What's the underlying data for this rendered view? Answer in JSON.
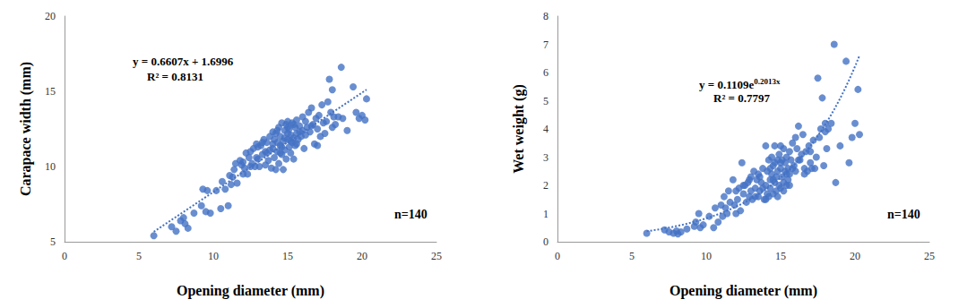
{
  "chart_data": [
    {
      "type": "scatter",
      "x_label": "Opening diameter (mm)",
      "y_label": "Carapace width (mm)",
      "color": "#4472c4",
      "marker": "circle",
      "xlim": [
        0,
        25
      ],
      "xticks": [
        0,
        5,
        10,
        15,
        20,
        25
      ],
      "ylim": [
        5,
        20
      ],
      "yticks": [
        5,
        10,
        15,
        20
      ],
      "grid": false,
      "equation": [
        "y = 0.6607x + 1.6996"
      ],
      "r2_label": "R² = 0.8131",
      "n_label": "n=140",
      "trendline": {
        "type": "linear",
        "a": 0.6607,
        "b": 1.6996,
        "line_style": "dotted"
      },
      "x": [
        6.0,
        7.2,
        7.5,
        7.8,
        8.0,
        8.1,
        8.3,
        8.7,
        9.2,
        9.3,
        9.5,
        9.6,
        9.8,
        10.2,
        10.5,
        10.6,
        10.8,
        11.0,
        11.1,
        11.2,
        11.3,
        11.5,
        11.6,
        11.8,
        12.0,
        12.1,
        12.2,
        12.3,
        12.4,
        12.5,
        12.6,
        12.7,
        12.8,
        12.9,
        13.0,
        13.0,
        13.1,
        13.2,
        13.3,
        13.4,
        13.5,
        13.5,
        13.6,
        13.7,
        13.8,
        13.9,
        14.0,
        14.0,
        14.1,
        14.1,
        14.2,
        14.2,
        14.3,
        14.3,
        14.4,
        14.4,
        14.5,
        14.5,
        14.6,
        14.6,
        14.7,
        14.7,
        14.8,
        14.8,
        14.9,
        14.9,
        15.0,
        15.0,
        15.0,
        15.1,
        15.1,
        15.2,
        15.2,
        15.3,
        15.3,
        15.4,
        15.4,
        15.5,
        15.5,
        15.6,
        15.6,
        15.7,
        15.8,
        15.9,
        16.0,
        16.0,
        16.1,
        16.2,
        16.3,
        16.4,
        16.5,
        16.6,
        16.7,
        16.8,
        16.9,
        17.0,
        17.0,
        17.1,
        17.2,
        17.3,
        17.4,
        17.5,
        17.6,
        17.7,
        17.8,
        17.9,
        18.0,
        18.0,
        18.1,
        18.2,
        18.4,
        18.6,
        18.7,
        19.0,
        19.4,
        19.6,
        19.8,
        20.0,
        20.2,
        20.3,
        11.4,
        11.9,
        12.0,
        12.5,
        12.9,
        13.3,
        13.6,
        14.0,
        14.3,
        14.5,
        14.8,
        15.0,
        15.2,
        15.4,
        15.6,
        15.8,
        16.2,
        16.6,
        13.8,
        14.6
      ],
      "values": [
        5.4,
        6.0,
        5.7,
        6.4,
        6.6,
        6.2,
        5.9,
        6.9,
        7.4,
        8.5,
        7.0,
        8.4,
        6.9,
        8.4,
        7.2,
        9.0,
        8.5,
        7.4,
        9.4,
        8.8,
        9.3,
        10.2,
        8.9,
        10.4,
        9.5,
        9.9,
        10.9,
        9.5,
        10.6,
        11.0,
        10.2,
        11.2,
        10.0,
        11.5,
        10.5,
        11.3,
        10.0,
        11.4,
        10.8,
        11.8,
        10.1,
        11.0,
        11.6,
        10.4,
        12.0,
        9.9,
        11.2,
        12.3,
        10.6,
        11.8,
        9.8,
        12.2,
        11.0,
        11.6,
        10.2,
        12.6,
        11.4,
        12.0,
        10.8,
        12.9,
        11.7,
        9.8,
        12.4,
        11.1,
        12.8,
        10.5,
        11.8,
        12.2,
        13.0,
        11.3,
        12.5,
        10.9,
        12.1,
        11.6,
        12.9,
        11.9,
        10.5,
        12.6,
        11.4,
        13.1,
        12.2,
        11.8,
        12.7,
        12.0,
        13.3,
        12.4,
        11.2,
        13.0,
        12.6,
        13.6,
        12.3,
        13.9,
        12.8,
        11.5,
        13.2,
        11.4,
        12.5,
        13.4,
        12.0,
        14.1,
        12.9,
        12.2,
        13.0,
        14.3,
        15.8,
        13.6,
        12.6,
        15.1,
        13.3,
        12.8,
        13.3,
        16.6,
        13.2,
        12.4,
        15.3,
        13.6,
        13.2,
        13.4,
        13.1,
        14.5,
        9.8,
        10.1,
        10.3,
        10.0,
        10.6,
        11.6,
        10.9,
        11.5,
        12.4,
        10.9,
        11.9,
        12.6,
        11.7,
        12.8,
        11.5,
        12.3,
        12.1,
        12.7,
        11.1,
        11.3
      ]
    },
    {
      "type": "scatter",
      "x_label": "Opening diameter (mm)",
      "y_label": "Wet weight (g)",
      "color": "#4472c4",
      "marker": "circle",
      "xlim": [
        0,
        25
      ],
      "xticks": [
        0,
        5,
        10,
        15,
        20,
        25
      ],
      "ylim": [
        0,
        8
      ],
      "yticks": [
        0,
        1,
        2,
        3,
        4,
        5,
        6,
        7,
        8
      ],
      "grid": false,
      "equation": [
        "y = 0.1109e",
        "0.2013x"
      ],
      "r2_label": "R² = 0.7797",
      "n_label": "n=140",
      "trendline": {
        "type": "exponential",
        "a": 0.1109,
        "b": 0.2013,
        "line_style": "dotted"
      },
      "x": [
        6.0,
        7.2,
        7.5,
        7.8,
        8.0,
        8.1,
        8.3,
        8.7,
        9.2,
        9.3,
        9.5,
        9.6,
        9.8,
        10.2,
        10.5,
        10.6,
        10.8,
        11.0,
        11.1,
        11.2,
        11.3,
        11.5,
        11.6,
        11.8,
        12.0,
        12.1,
        12.2,
        12.3,
        12.4,
        12.5,
        12.6,
        12.7,
        12.8,
        12.9,
        13.0,
        13.0,
        13.1,
        13.2,
        13.3,
        13.4,
        13.5,
        13.5,
        13.6,
        13.7,
        13.8,
        13.9,
        14.0,
        14.0,
        14.1,
        14.1,
        14.2,
        14.2,
        14.3,
        14.3,
        14.4,
        14.4,
        14.5,
        14.5,
        14.6,
        14.6,
        14.7,
        14.7,
        14.8,
        14.8,
        14.9,
        14.9,
        15.0,
        15.0,
        15.0,
        15.1,
        15.1,
        15.2,
        15.2,
        15.3,
        15.3,
        15.4,
        15.4,
        15.5,
        15.5,
        15.6,
        15.6,
        15.7,
        15.8,
        15.9,
        16.0,
        16.0,
        16.1,
        16.2,
        16.3,
        16.4,
        16.5,
        16.6,
        16.7,
        16.8,
        16.9,
        17.0,
        17.0,
        17.1,
        17.2,
        17.3,
        17.4,
        17.5,
        17.6,
        17.7,
        17.8,
        17.9,
        18.0,
        18.0,
        18.1,
        18.2,
        18.4,
        18.6,
        18.7,
        19.0,
        19.4,
        19.6,
        19.8,
        20.0,
        20.2,
        20.3,
        11.4,
        11.9,
        12.0,
        12.5,
        12.9,
        13.3,
        13.6,
        14.0,
        14.3,
        14.5,
        14.8,
        15.0,
        15.2,
        15.4,
        15.6,
        15.8,
        16.2,
        16.6,
        13.8,
        14.6
      ],
      "values": [
        0.3,
        0.42,
        0.35,
        0.3,
        0.38,
        0.28,
        0.35,
        0.45,
        0.55,
        0.7,
        1.0,
        0.5,
        0.6,
        0.9,
        0.5,
        1.2,
        0.7,
        1.3,
        0.9,
        1.6,
        1.2,
        1.8,
        1.4,
        2.2,
        1.0,
        1.5,
        1.9,
        1.1,
        2.8,
        1.7,
        2.0,
        1.4,
        2.1,
        1.6,
        2.3,
        1.8,
        1.5,
        2.5,
        1.9,
        2.2,
        1.6,
        2.4,
        1.8,
        2.1,
        2.6,
        1.5,
        3.4,
        2.0,
        1.7,
        2.5,
        1.6,
        2.9,
        2.2,
        1.9,
        3.0,
        2.4,
        1.7,
        2.7,
        2.1,
        3.4,
        2.3,
        1.8,
        2.9,
        2.5,
        2.0,
        3.1,
        2.6,
        1.9,
        2.8,
        2.3,
        2.9,
        2.1,
        3.3,
        2.5,
        2.8,
        2.0,
        3.0,
        2.6,
        2.2,
        3.2,
        2.4,
        2.9,
        3.5,
        2.7,
        3.7,
        2.5,
        3.3,
        4.1,
        2.9,
        3.1,
        3.8,
        2.6,
        3.2,
        2.5,
        3.4,
        2.8,
        3.2,
        2.6,
        3.6,
        2.6,
        3.0,
        5.8,
        3.7,
        4.0,
        5.1,
        2.7,
        3.9,
        4.2,
        3.3,
        4.0,
        4.2,
        7.0,
        2.1,
        3.4,
        6.4,
        2.8,
        3.7,
        4.2,
        5.4,
        3.8,
        1.0,
        1.3,
        1.8,
        2.0,
        2.2,
        1.6,
        2.3,
        1.5,
        2.6,
        2.2,
        1.6,
        3.4,
        1.8,
        2.4,
        2.0,
        2.6,
        2.9,
        2.4,
        1.9,
        2.8
      ]
    }
  ]
}
